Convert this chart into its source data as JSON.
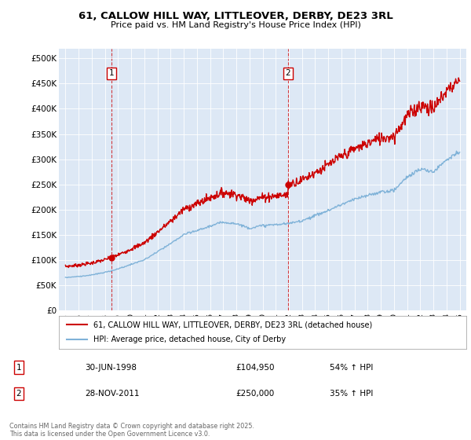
{
  "title_line1": "61, CALLOW HILL WAY, LITTLEOVER, DERBY, DE23 3RL",
  "title_line2": "Price paid vs. HM Land Registry's House Price Index (HPI)",
  "background_color": "#dde8f5",
  "red_line_label": "61, CALLOW HILL WAY, LITTLEOVER, DERBY, DE23 3RL (detached house)",
  "blue_line_label": "HPI: Average price, detached house, City of Derby",
  "marker1_x": 1998.5,
  "marker1_y": 104950,
  "marker1_label": "30-JUN-1998",
  "marker1_amount": "£104,950",
  "marker1_change": "54% ↑ HPI",
  "marker2_x": 2011.92,
  "marker2_y": 250000,
  "marker2_label": "28-NOV-2011",
  "marker2_amount": "£250,000",
  "marker2_change": "35% ↑ HPI",
  "footer": "Contains HM Land Registry data © Crown copyright and database right 2025.\nThis data is licensed under the Open Government Licence v3.0.",
  "ylim": [
    0,
    520000
  ],
  "xlim": [
    1994.5,
    2025.5
  ],
  "yticks": [
    0,
    50000,
    100000,
    150000,
    200000,
    250000,
    300000,
    350000,
    400000,
    450000,
    500000
  ],
  "ytick_labels": [
    "£0",
    "£50K",
    "£100K",
    "£150K",
    "£200K",
    "£250K",
    "£300K",
    "£350K",
    "£400K",
    "£450K",
    "£500K"
  ],
  "xticks": [
    1995,
    1996,
    1997,
    1998,
    1999,
    2000,
    2001,
    2002,
    2003,
    2004,
    2005,
    2006,
    2007,
    2008,
    2009,
    2010,
    2011,
    2012,
    2013,
    2014,
    2015,
    2016,
    2017,
    2018,
    2019,
    2020,
    2021,
    2022,
    2023,
    2024,
    2025
  ],
  "red_color": "#cc0000",
  "blue_color": "#7fb2d8"
}
